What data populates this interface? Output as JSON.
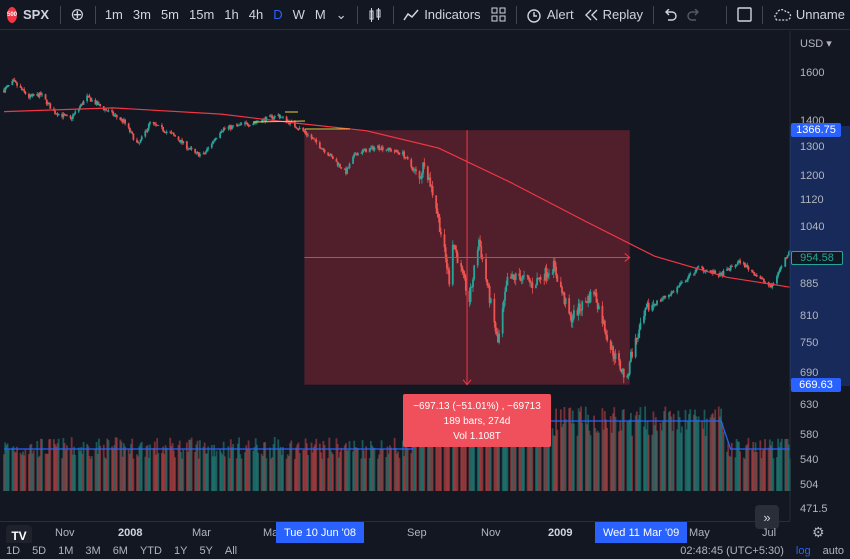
{
  "toolbar": {
    "symbol": "SPX",
    "logo_text": "500",
    "add_symbol": "⊕",
    "intervals": [
      "1m",
      "3m",
      "5m",
      "15m",
      "1h",
      "4h",
      "D",
      "W",
      "M"
    ],
    "active_interval": "D",
    "interval_more": "⌄",
    "indicators_label": "Indicators",
    "alert_label": "Alert",
    "replay_label": "Replay",
    "layout_name": "Unname"
  },
  "currency": "USD",
  "chart_data": {
    "type": "candlestick",
    "symbol": "SPX",
    "y_scale": "log",
    "y_range": [
      440,
      1720
    ],
    "price_ticks": [
      1600,
      1400,
      1300,
      1200,
      1120,
      1040,
      885,
      810,
      750,
      690,
      630,
      580,
      540,
      504,
      471.5
    ],
    "time_ticks": [
      "Nov",
      "2008",
      "Mar",
      "Ma",
      "Sep",
      "Nov",
      "2009",
      "May",
      "Jul"
    ],
    "price_path": [
      [
        "2007-10-01",
        1530
      ],
      [
        "2007-10-09",
        1565
      ],
      [
        "2007-10-22",
        1500
      ],
      [
        "2007-11-01",
        1510
      ],
      [
        "2007-11-12",
        1440
      ],
      [
        "2007-11-26",
        1410
      ],
      [
        "2007-12-10",
        1500
      ],
      [
        "2007-12-20",
        1465
      ],
      [
        "2008-01-10",
        1400
      ],
      [
        "2008-01-22",
        1310
      ],
      [
        "2008-02-01",
        1395
      ],
      [
        "2008-02-20",
        1350
      ],
      [
        "2008-03-10",
        1280
      ],
      [
        "2008-03-17",
        1275
      ],
      [
        "2008-04-01",
        1370
      ],
      [
        "2008-05-01",
        1400
      ],
      [
        "2008-05-19",
        1425
      ],
      [
        "2008-06-10",
        1361
      ],
      [
        "2008-06-30",
        1280
      ],
      [
        "2008-07-15",
        1215
      ],
      [
        "2008-07-23",
        1280
      ],
      [
        "2008-08-11",
        1305
      ],
      [
        "2008-09-01",
        1280
      ],
      [
        "2008-09-15",
        1190
      ],
      [
        "2008-09-19",
        1255
      ],
      [
        "2008-09-29",
        1106
      ],
      [
        "2008-10-10",
        899
      ],
      [
        "2008-10-13",
        1003
      ],
      [
        "2008-10-27",
        848
      ],
      [
        "2008-11-04",
        1005
      ],
      [
        "2008-11-20",
        752
      ],
      [
        "2008-11-28",
        896
      ],
      [
        "2008-12-08",
        909
      ],
      [
        "2008-12-19",
        887
      ],
      [
        "2009-01-06",
        934
      ],
      [
        "2009-01-20",
        805
      ],
      [
        "2009-02-09",
        870
      ],
      [
        "2009-02-23",
        743
      ],
      [
        "2009-03-09",
        676
      ],
      [
        "2009-03-11",
        720
      ],
      [
        "2009-03-26",
        830
      ],
      [
        "2009-04-17",
        870
      ],
      [
        "2009-05-08",
        930
      ],
      [
        "2009-05-26",
        910
      ],
      [
        "2009-06-12",
        946
      ],
      [
        "2009-07-08",
        880
      ],
      [
        "2009-07-24",
        980
      ]
    ],
    "moving_average": [
      [
        "2007-10-01",
        1440
      ],
      [
        "2008-01-01",
        1455
      ],
      [
        "2008-04-01",
        1430
      ],
      [
        "2008-06-01",
        1395
      ],
      [
        "2008-08-01",
        1365
      ],
      [
        "2008-10-01",
        1300
      ],
      [
        "2008-12-01",
        1180
      ],
      [
        "2009-02-01",
        1060
      ],
      [
        "2009-04-01",
        960
      ],
      [
        "2009-06-01",
        905
      ],
      [
        "2009-07-24",
        880
      ]
    ],
    "measure": {
      "start_date": "2008-06-10",
      "end_date": "2009-03-11",
      "start_price": 1366.75,
      "end_price": 669.63,
      "change": "−697.13 (−51.01%) , −69713",
      "bars": "189 bars, 274d",
      "volume": "Vol 1.108T"
    },
    "last_price": 954.58,
    "crosshair_x_label": "Tue 10 Jun '08",
    "crosshair_end_label": "Wed 11 Mar '09"
  },
  "price_tags": {
    "top": "1366.75",
    "last": "954.58",
    "bottom": "669.63"
  },
  "bottom_bar": {
    "ranges": [
      "1D",
      "5D",
      "1M",
      "3M",
      "6M",
      "YTD",
      "1Y",
      "5Y",
      "All"
    ],
    "clock": "02:48:45 (UTC+5:30)",
    "log_label": "log",
    "auto_label": "auto"
  },
  "logo": "TV",
  "colors": {
    "up": "#26a69a",
    "down": "#ef5350",
    "ma": "#f23645",
    "vol_ma": "#2962ff",
    "measure": "#f23645",
    "bg": "#131722"
  }
}
